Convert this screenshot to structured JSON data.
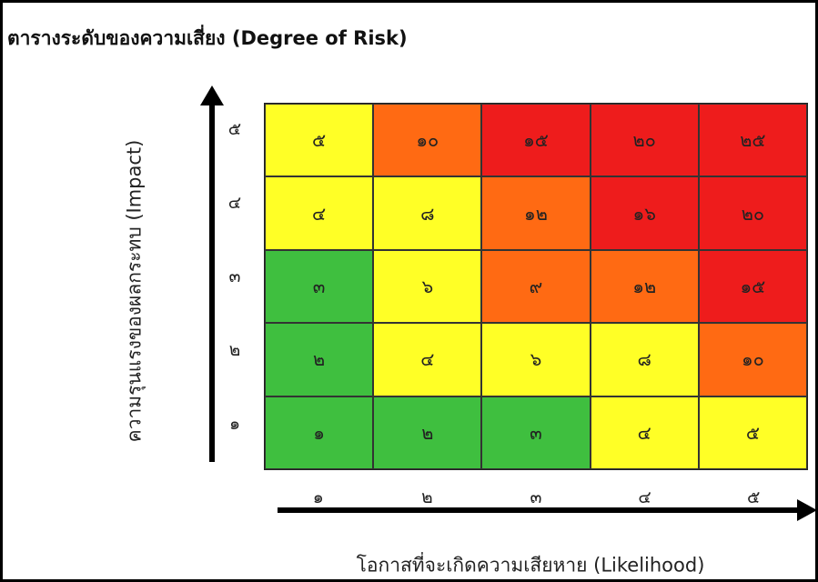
{
  "title": "ตารางระดับของความเสี่ยง (Degree of Risk)",
  "y_axis_title": "ความรุนแรงของผลกระทบ (Impact)",
  "x_axis_title": "โอกาสที่จะเกิดความเสียหาย (Likelihood)",
  "y_labels": [
    "๕",
    "๔",
    "๓",
    "๒",
    "๑"
  ],
  "x_labels": [
    "๑",
    "๒",
    "๓",
    "๔",
    "๕"
  ],
  "colors": {
    "green": "#3fbf3f",
    "yellow": "#ffff26",
    "orange": "#ff6a13",
    "red": "#ee1c1c",
    "border": "#000000"
  },
  "matrix": [
    [
      {
        "v": "๕",
        "c": "yellow"
      },
      {
        "v": "๑๐",
        "c": "orange"
      },
      {
        "v": "๑๕",
        "c": "red"
      },
      {
        "v": "๒๐",
        "c": "red"
      },
      {
        "v": "๒๕",
        "c": "red"
      }
    ],
    [
      {
        "v": "๔",
        "c": "yellow"
      },
      {
        "v": "๘",
        "c": "yellow"
      },
      {
        "v": "๑๒",
        "c": "orange"
      },
      {
        "v": "๑๖",
        "c": "red"
      },
      {
        "v": "๒๐",
        "c": "red"
      }
    ],
    [
      {
        "v": "๓",
        "c": "green"
      },
      {
        "v": "๖",
        "c": "yellow"
      },
      {
        "v": "๙",
        "c": "orange"
      },
      {
        "v": "๑๒",
        "c": "orange"
      },
      {
        "v": "๑๕",
        "c": "red"
      }
    ],
    [
      {
        "v": "๒",
        "c": "green"
      },
      {
        "v": "๔",
        "c": "yellow"
      },
      {
        "v": "๖",
        "c": "yellow"
      },
      {
        "v": "๘",
        "c": "yellow"
      },
      {
        "v": "๑๐",
        "c": "orange"
      }
    ],
    [
      {
        "v": "๑",
        "c": "green"
      },
      {
        "v": "๒",
        "c": "green"
      },
      {
        "v": "๓",
        "c": "green"
      },
      {
        "v": "๔",
        "c": "yellow"
      },
      {
        "v": "๕",
        "c": "yellow"
      }
    ]
  ]
}
